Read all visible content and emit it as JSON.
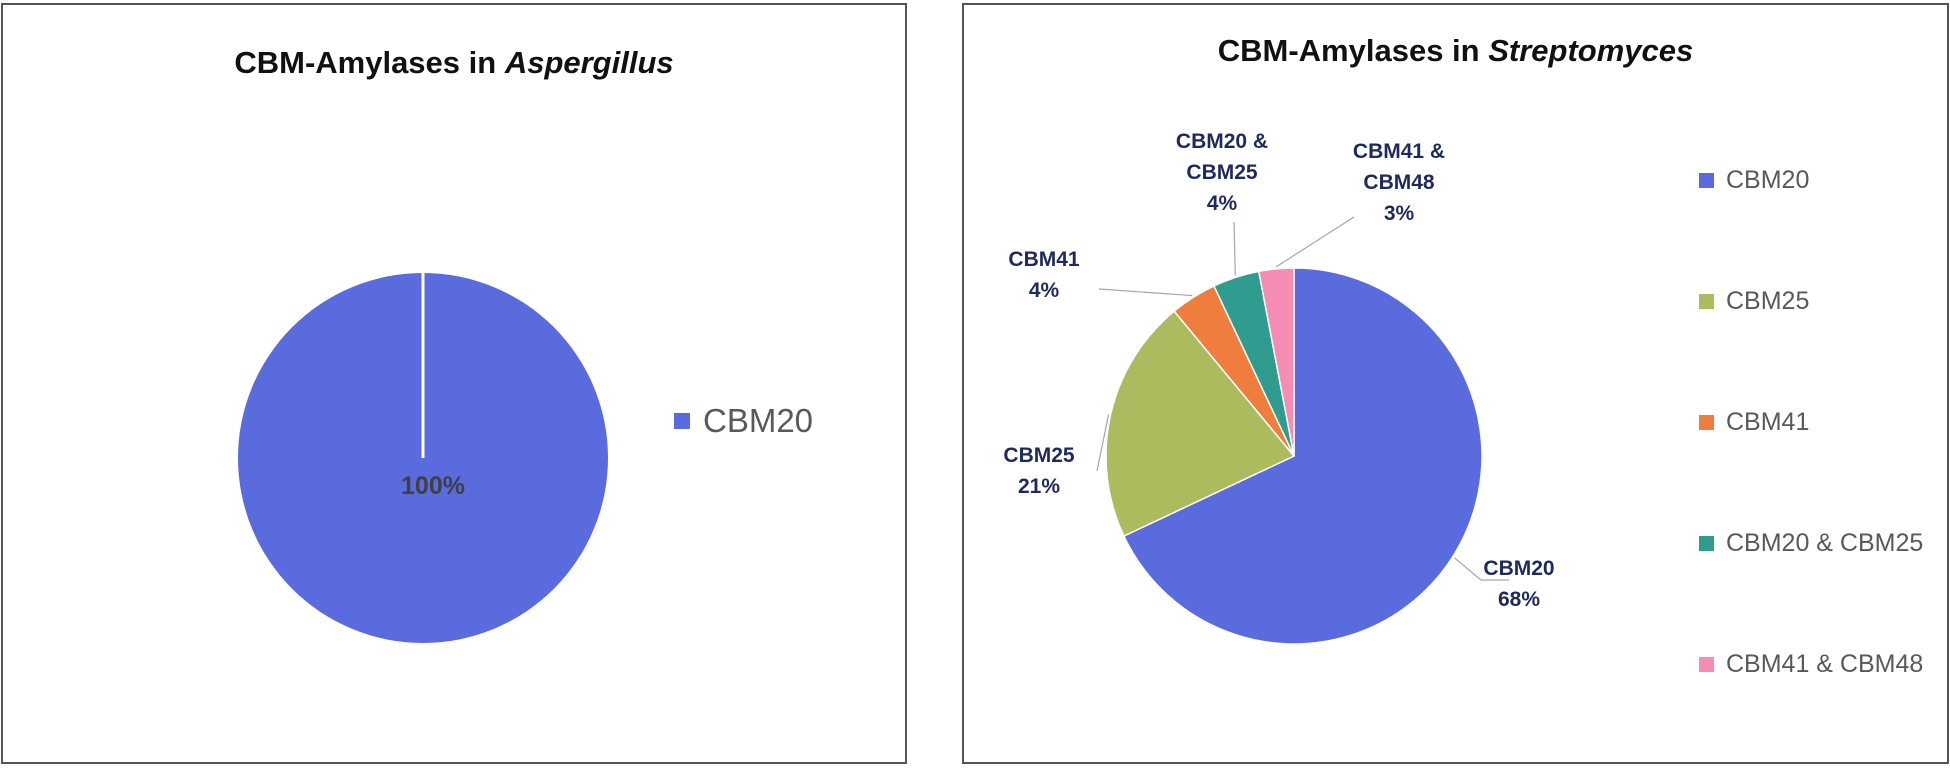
{
  "charts": {
    "left": {
      "title_prefix": "CBM-Amylases in ",
      "title_italic": "Aspergillus"
    },
    "right": {
      "title_prefix": "CBM-Amylases in ",
      "title_italic": "Streptomyces"
    }
  },
  "chart_data": [
    {
      "type": "pie",
      "title": "CBM-Amylases in Aspergillus",
      "legend_position": "right",
      "slices": [
        {
          "label": "CBM20",
          "value": 100,
          "display": "100%",
          "color": "#5a6bde"
        }
      ]
    },
    {
      "type": "pie",
      "title": "CBM-Amylases in Streptomyces",
      "legend_position": "right",
      "slices": [
        {
          "label": "CBM20",
          "value": 68,
          "display": "68%",
          "color": "#5a6bde",
          "label_lines": [
            "CBM20",
            "68%"
          ]
        },
        {
          "label": "CBM25",
          "value": 21,
          "display": "21%",
          "color": "#abbb5e",
          "label_lines": [
            "CBM25",
            "21%"
          ]
        },
        {
          "label": "CBM41",
          "value": 4,
          "display": "4%",
          "color": "#ef7d3d",
          "label_lines": [
            "CBM41",
            "4%"
          ]
        },
        {
          "label": "CBM20 & CBM25",
          "value": 4,
          "display": "4%",
          "color": "#2f9c8f",
          "label_lines": [
            "CBM20 &",
            "CBM25",
            "4%"
          ]
        },
        {
          "label": "CBM41 & CBM48",
          "value": 3,
          "display": "3%",
          "color": "#f58cb4",
          "label_lines": [
            "CBM41 &",
            "CBM48",
            "3%"
          ]
        }
      ]
    }
  ]
}
